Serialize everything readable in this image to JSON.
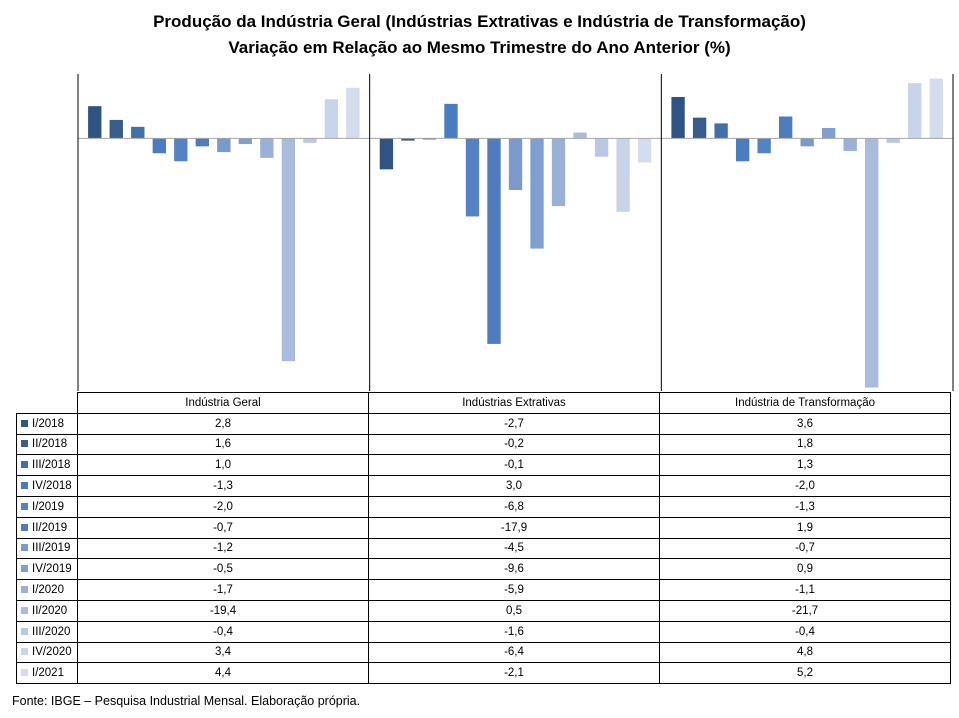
{
  "title_line1": "Produção da Indústria Geral (Indústrias Extrativas e Indústria de Transformação)",
  "title_line2": "Variação em Relação ao Mesmo Trimestre do Ano Anterior (%)",
  "source": "Fonte: IBGE – Pesquisa Industrial Mensal. Elaboração própria.",
  "chart_data": {
    "type": "bar",
    "categories": [
      "Indústria Geral",
      "Indústrias Extrativas",
      "Indústria de Transformação"
    ],
    "ylim": [
      -22,
      5.6
    ],
    "grid": false,
    "legend": "table-below",
    "series": [
      {
        "name": "I/2018",
        "color": "#2f5383",
        "values": [
          2.8,
          -2.7,
          3.6
        ],
        "labels": [
          "2,8",
          "-2,7",
          "3,6"
        ]
      },
      {
        "name": "II/2018",
        "color": "#385d8a",
        "values": [
          1.6,
          -0.2,
          1.8
        ],
        "labels": [
          "1,6",
          "-0,2",
          "1,8"
        ]
      },
      {
        "name": "III/2018",
        "color": "#4270a9",
        "values": [
          1.0,
          -0.1,
          1.3
        ],
        "labels": [
          "1,0",
          "-0,1",
          "1,3"
        ]
      },
      {
        "name": "IV/2018",
        "color": "#4b7cc0",
        "values": [
          -1.3,
          3.0,
          -2.0
        ],
        "labels": [
          "-1,3",
          "3,0",
          "-2,0"
        ]
      },
      {
        "name": "I/2019",
        "color": "#5582c2",
        "values": [
          -2.0,
          -6.8,
          -1.3
        ],
        "labels": [
          "-2,0",
          "-6,8",
          "-1,3"
        ]
      },
      {
        "name": "II/2019",
        "color": "#4f7cbc",
        "values": [
          -0.7,
          -17.9,
          1.9
        ],
        "labels": [
          "-0,7",
          "-17,9",
          "1,9"
        ]
      },
      {
        "name": "III/2019",
        "color": "#7b9acb",
        "values": [
          -1.2,
          -4.5,
          -0.7
        ],
        "labels": [
          "-1,2",
          "-4,5",
          "-0,7"
        ]
      },
      {
        "name": "IV/2019",
        "color": "#7f9fcf",
        "values": [
          -0.5,
          -9.6,
          0.9
        ],
        "labels": [
          "-0,5",
          "-9,6",
          "0,9"
        ]
      },
      {
        "name": "I/2020",
        "color": "#9ab0d6",
        "values": [
          -1.7,
          -5.9,
          -1.1
        ],
        "labels": [
          "-1,7",
          "-5,9",
          "-1,1"
        ]
      },
      {
        "name": "II/2020",
        "color": "#a9bcdd",
        "values": [
          -19.4,
          0.5,
          -21.7
        ],
        "labels": [
          "-19,4",
          "0,5",
          "-21,7"
        ]
      },
      {
        "name": "III/2020",
        "color": "#b9c9e4",
        "values": [
          -0.4,
          -1.6,
          -0.4
        ],
        "labels": [
          "-0,4",
          "-1,6",
          "-0,4"
        ]
      },
      {
        "name": "IV/2020",
        "color": "#c8d4ea",
        "values": [
          3.4,
          -6.4,
          4.8
        ],
        "labels": [
          "3,4",
          "-6,4",
          "4,8"
        ]
      },
      {
        "name": "I/2021",
        "color": "#d4ddee",
        "values": [
          4.4,
          -2.1,
          5.2
        ],
        "labels": [
          "4,4",
          "-2,1",
          "5,2"
        ]
      }
    ]
  }
}
